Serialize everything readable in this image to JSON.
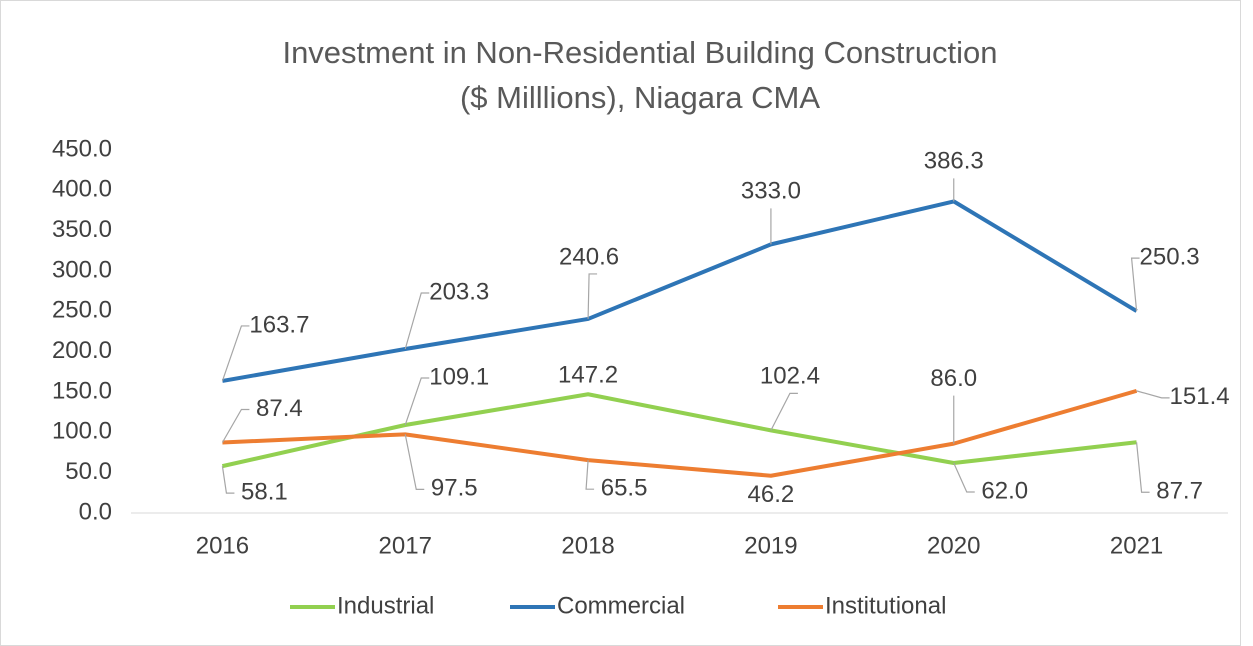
{
  "chart_data": {
    "type": "line",
    "title": [
      "Investment in Non-Residential Building Construction",
      "($ Milllions), Niagara CMA"
    ],
    "categories": [
      "2016",
      "2017",
      "2018",
      "2019",
      "2020",
      "2021"
    ],
    "series": [
      {
        "name": "Industrial",
        "color": "#92d050",
        "values": [
          58.1,
          109.1,
          147.2,
          102.4,
          62.0,
          87.7
        ],
        "value_labels": [
          "58.1",
          "109.1",
          "147.2",
          "102.4",
          "62.0",
          "87.7"
        ]
      },
      {
        "name": "Commercial",
        "color": "#2e75b6",
        "values": [
          163.7,
          203.3,
          240.6,
          333.0,
          386.3,
          250.3
        ],
        "value_labels": [
          "163.7",
          "203.3",
          "240.6",
          "333.0",
          "386.3",
          "250.3"
        ]
      },
      {
        "name": "Institutional",
        "color": "#ed7d31",
        "values": [
          87.4,
          97.5,
          65.5,
          46.2,
          86.0,
          151.4
        ],
        "value_labels": [
          "87.4",
          "97.5",
          "65.5",
          "46.2",
          "86.0",
          "151.4"
        ]
      }
    ],
    "ylim": [
      0,
      450
    ],
    "yticks": [
      {
        "value": 0,
        "label": "0.0"
      },
      {
        "value": 50,
        "label": "50.0"
      },
      {
        "value": 100,
        "label": "100.0"
      },
      {
        "value": 150,
        "label": "150.0"
      },
      {
        "value": 200,
        "label": "200.0"
      },
      {
        "value": 250,
        "label": "250.0"
      },
      {
        "value": 300,
        "label": "300.0"
      },
      {
        "value": 350,
        "label": "350.0"
      },
      {
        "value": 400,
        "label": "400.0"
      },
      {
        "value": 450,
        "label": "450.0"
      }
    ],
    "legend": "bottom"
  }
}
